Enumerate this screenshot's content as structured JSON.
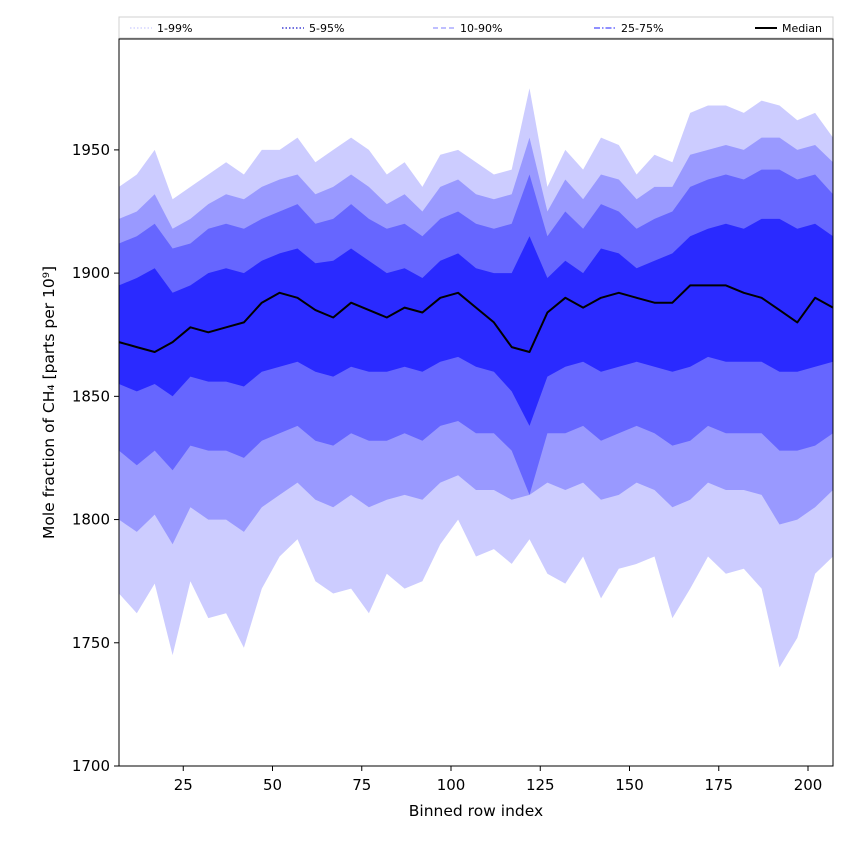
{
  "chart_data": {
    "type": "area",
    "xlabel": "Binned row index",
    "ylabel": "Mole fraction of CH₄ [parts per 10⁹]",
    "xlim": [
      7,
      207
    ],
    "ylim": [
      1700,
      1995
    ],
    "xticks": [
      25,
      50,
      75,
      100,
      125,
      150,
      175,
      200
    ],
    "yticks": [
      1700,
      1750,
      1800,
      1850,
      1900,
      1950
    ],
    "grid": false,
    "legend_placement": "top, outside plot, single row",
    "colors": {
      "band_1_99": "#ccccff",
      "band_5_95": "#9999ff",
      "band_10_90": "#6666ff",
      "band_25_75": "#2a2aff",
      "median": "#000000"
    },
    "legend": [
      {
        "label": "1-99%",
        "style": "dotted",
        "color": "#ccccff"
      },
      {
        "label": "5-95%",
        "style": "dotted",
        "color": "#1a1acc"
      },
      {
        "label": "10-90%",
        "style": "dashed",
        "color": "#9999ff"
      },
      {
        "label": "25-75%",
        "style": "dashdot",
        "color": "#4d4dff"
      },
      {
        "label": "Median",
        "style": "solid",
        "color": "#000000"
      }
    ],
    "x": [
      7,
      12,
      17,
      22,
      27,
      32,
      37,
      42,
      47,
      52,
      57,
      62,
      67,
      72,
      77,
      82,
      87,
      92,
      97,
      102,
      107,
      112,
      117,
      122,
      127,
      132,
      137,
      142,
      147,
      152,
      157,
      162,
      167,
      172,
      177,
      182,
      187,
      192,
      197,
      202,
      207
    ],
    "series": [
      {
        "name": "1-99%",
        "low": [
          1770,
          1762,
          1774,
          1745,
          1775,
          1760,
          1762,
          1748,
          1772,
          1785,
          1792,
          1775,
          1770,
          1772,
          1762,
          1778,
          1772,
          1775,
          1790,
          1800,
          1785,
          1788,
          1782,
          1792,
          1778,
          1774,
          1785,
          1768,
          1780,
          1782,
          1785,
          1760,
          1772,
          1785,
          1778,
          1780,
          1772,
          1740,
          1752,
          1778,
          1785
        ],
        "high": [
          1935,
          1940,
          1950,
          1930,
          1935,
          1940,
          1945,
          1940,
          1950,
          1950,
          1955,
          1945,
          1950,
          1955,
          1950,
          1940,
          1945,
          1935,
          1948,
          1950,
          1945,
          1940,
          1942,
          1975,
          1935,
          1950,
          1942,
          1955,
          1952,
          1940,
          1948,
          1945,
          1965,
          1968,
          1968,
          1965,
          1970,
          1968,
          1962,
          1965,
          1955
        ]
      },
      {
        "name": "5-95%",
        "low": [
          1800,
          1795,
          1802,
          1790,
          1805,
          1800,
          1800,
          1795,
          1805,
          1810,
          1815,
          1808,
          1805,
          1810,
          1805,
          1808,
          1810,
          1808,
          1815,
          1818,
          1812,
          1812,
          1808,
          1810,
          1815,
          1812,
          1815,
          1808,
          1810,
          1815,
          1812,
          1805,
          1808,
          1815,
          1812,
          1812,
          1810,
          1798,
          1800,
          1805,
          1812
        ],
        "high": [
          1922,
          1925,
          1932,
          1918,
          1922,
          1928,
          1932,
          1930,
          1935,
          1938,
          1940,
          1932,
          1935,
          1940,
          1935,
          1928,
          1932,
          1925,
          1935,
          1938,
          1932,
          1930,
          1932,
          1955,
          1925,
          1938,
          1930,
          1940,
          1938,
          1930,
          1935,
          1935,
          1948,
          1950,
          1952,
          1950,
          1955,
          1955,
          1950,
          1952,
          1945
        ]
      },
      {
        "name": "10-90%",
        "low": [
          1828,
          1822,
          1828,
          1820,
          1830,
          1828,
          1828,
          1825,
          1832,
          1835,
          1838,
          1832,
          1830,
          1835,
          1832,
          1832,
          1835,
          1832,
          1838,
          1840,
          1835,
          1835,
          1828,
          1810,
          1835,
          1835,
          1838,
          1832,
          1835,
          1838,
          1835,
          1830,
          1832,
          1838,
          1835,
          1835,
          1835,
          1828,
          1828,
          1830,
          1835
        ],
        "high": [
          1912,
          1915,
          1920,
          1910,
          1912,
          1918,
          1920,
          1918,
          1922,
          1925,
          1928,
          1920,
          1922,
          1928,
          1922,
          1918,
          1920,
          1915,
          1922,
          1925,
          1920,
          1918,
          1920,
          1940,
          1915,
          1925,
          1918,
          1928,
          1925,
          1918,
          1922,
          1925,
          1935,
          1938,
          1940,
          1938,
          1942,
          1942,
          1938,
          1940,
          1932
        ]
      },
      {
        "name": "25-75%",
        "low": [
          1855,
          1852,
          1855,
          1850,
          1858,
          1856,
          1856,
          1854,
          1860,
          1862,
          1864,
          1860,
          1858,
          1862,
          1860,
          1860,
          1862,
          1860,
          1864,
          1866,
          1862,
          1860,
          1852,
          1838,
          1858,
          1862,
          1864,
          1860,
          1862,
          1864,
          1862,
          1860,
          1862,
          1866,
          1864,
          1864,
          1864,
          1860,
          1860,
          1862,
          1864
        ],
        "high": [
          1895,
          1898,
          1902,
          1892,
          1895,
          1900,
          1902,
          1900,
          1905,
          1908,
          1910,
          1904,
          1905,
          1910,
          1905,
          1900,
          1902,
          1898,
          1905,
          1908,
          1902,
          1900,
          1900,
          1915,
          1898,
          1905,
          1900,
          1910,
          1908,
          1902,
          1905,
          1908,
          1915,
          1918,
          1920,
          1918,
          1922,
          1922,
          1918,
          1920,
          1915
        ]
      },
      {
        "name": "Median",
        "values": [
          1872,
          1870,
          1868,
          1872,
          1878,
          1876,
          1878,
          1880,
          1888,
          1892,
          1890,
          1885,
          1882,
          1888,
          1885,
          1882,
          1886,
          1884,
          1890,
          1892,
          1886,
          1880,
          1870,
          1868,
          1884,
          1890,
          1886,
          1890,
          1892,
          1890,
          1888,
          1888,
          1895,
          1895,
          1895,
          1892,
          1890,
          1885,
          1880,
          1890,
          1886
        ]
      }
    ]
  }
}
